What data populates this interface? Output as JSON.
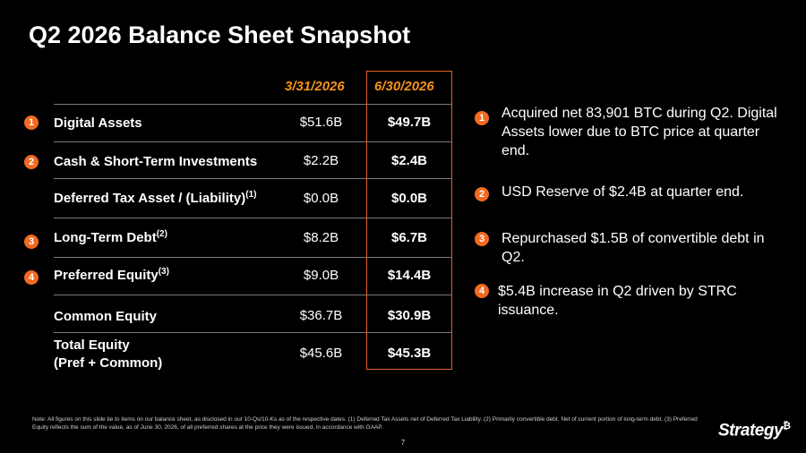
{
  "title": "Q2 2026 Balance Sheet Snapshot",
  "columns": [
    "3/31/2026",
    "6/30/2026"
  ],
  "rows": [
    {
      "badge": "1",
      "label": "Digital Assets",
      "sup": "",
      "v1": "$51.6B",
      "v2": "$49.7B"
    },
    {
      "badge": "2",
      "label": "Cash & Short-Term Investments",
      "sup": "",
      "v1": "$2.2B",
      "v2": "$2.4B"
    },
    {
      "badge": "",
      "label": "Deferred Tax Asset / (Liability)",
      "sup": "(1)",
      "v1": "$0.0B",
      "v2": "$0.0B"
    },
    {
      "badge": "3",
      "label": "Long-Term Debt",
      "sup": "(2)",
      "v1": "$8.2B",
      "v2": "$6.7B"
    },
    {
      "badge": "4",
      "label": "Preferred Equity",
      "sup": "(3)",
      "v1": "$9.0B",
      "v2": "$14.4B"
    },
    {
      "badge": "",
      "label": "Common Equity",
      "sup": "",
      "v1": "$36.7B",
      "v2": "$30.9B"
    }
  ],
  "total": {
    "label_line1": "Total Equity",
    "label_line2": "(Pref + Common)",
    "v1": "$45.6B",
    "v2": "$45.3B"
  },
  "notes": [
    {
      "badge": "1",
      "text": "Acquired net 83,901 BTC during Q2. Digital Assets lower due to BTC price at quarter end."
    },
    {
      "badge": "2",
      "text": "USD Reserve of $2.4B at quarter end."
    },
    {
      "badge": "3",
      "text": "Repurchased $1.5B of convertible debt in Q2."
    },
    {
      "badge": "4",
      "text": "$5.4B increase in Q2 driven by STRC issuance."
    }
  ],
  "footnote": "Note: All figures on this slide tie to items on our balance sheet, as disclosed in our 10-Qs/10-Ks as of the respective dates. (1) Deferred Tax Assets net of Deferred Tax Liability. (2) Primarily convertible debt. Net of current portion of long-term debt. (3) Preferred Equity reflects the sum of the value, as of June 30, 2026, of all preferred shares at the price they were issued, in accordance with GAAP.",
  "page_number": "7",
  "logo_text": "Strategy",
  "logo_symbol": "₿",
  "colors": {
    "accent": "#f26a21",
    "header": "#f7931a",
    "background": "#000000"
  }
}
